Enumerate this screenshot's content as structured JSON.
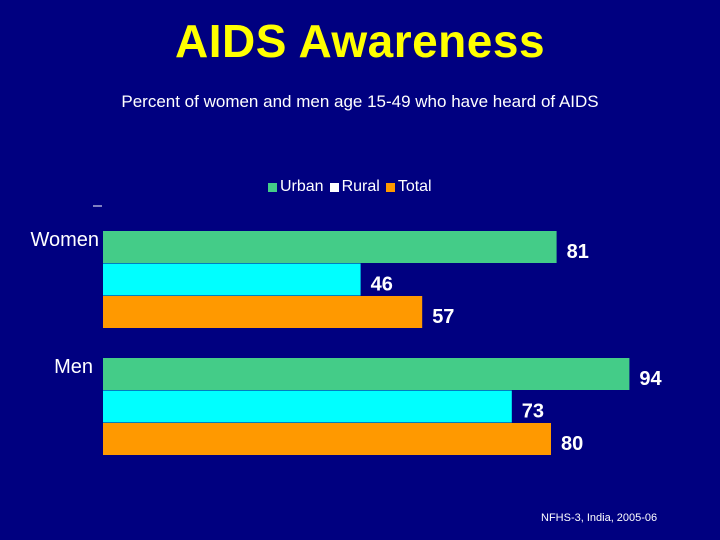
{
  "title": "AIDS Awareness",
  "subtitle": "Percent of women and men age 15-49 who have heard of AIDS",
  "source": "NFHS-3, India, 2005-06",
  "chart_data": {
    "type": "bar",
    "orientation": "horizontal",
    "categories": [
      "Women",
      "Men"
    ],
    "series": [
      {
        "name": "Urban",
        "color": "#44cc88",
        "values": [
          81,
          94
        ]
      },
      {
        "name": "Rural",
        "color": "#00ffff",
        "values": [
          46,
          73
        ]
      },
      {
        "name": "Total",
        "color": "#ff9900",
        "values": [
          57,
          80
        ]
      }
    ],
    "legend_position": "top",
    "xlim": [
      0,
      100
    ],
    "grid": false,
    "data_labels": true
  }
}
